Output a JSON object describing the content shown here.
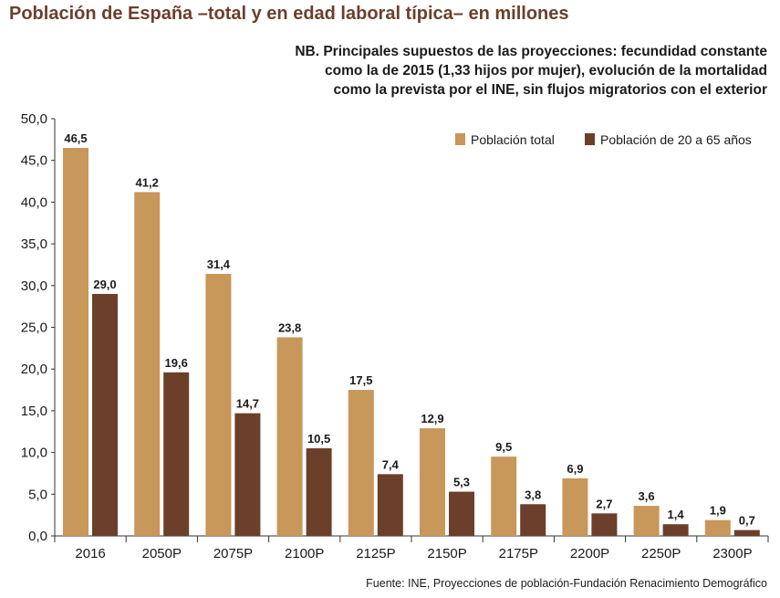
{
  "chart_data": {
    "type": "bar",
    "title": "Población de España –total y en edad laboral típica– en millones",
    "subtitle_lines": [
      "NB. Principales supuestos de las proyecciones: fecundidad constante",
      "como la de 2015 (1,33 hijos por mujer), evolución de la mortalidad",
      "como la prevista por el INE, sin flujos migratorios con el exterior"
    ],
    "source": "Fuente: INE, Proyecciones de población-Fundación Renacimiento Demográfico",
    "categories": [
      "2016",
      "2050P",
      "2075P",
      "2100P",
      "2125P",
      "2150P",
      "2175P",
      "2200P",
      "2250P",
      "2300P"
    ],
    "series": [
      {
        "name": "Población total",
        "color": "#c8975a",
        "values": [
          46.5,
          41.2,
          31.4,
          23.8,
          17.5,
          12.9,
          9.5,
          6.9,
          3.6,
          1.9
        ],
        "labels": [
          "46,5",
          "41,2",
          "31,4",
          "23,8",
          "17,5",
          "12,9",
          "9,5",
          "6,9",
          "3,6",
          "1,9"
        ]
      },
      {
        "name": "Población de 20 a 65 años",
        "color": "#6b3f2a",
        "values": [
          29.0,
          19.6,
          14.7,
          10.5,
          7.4,
          5.3,
          3.8,
          2.7,
          1.4,
          0.7
        ],
        "labels": [
          "29,0",
          "19,6",
          "14,7",
          "10,5",
          "7,4",
          "5,3",
          "3,8",
          "2,7",
          "1,4",
          "0,7"
        ]
      }
    ],
    "ylim": [
      0,
      50
    ],
    "yticks": [
      0,
      5,
      10,
      15,
      20,
      25,
      30,
      35,
      40,
      45,
      50
    ],
    "ytick_labels": [
      "0,0",
      "5,0",
      "10,0",
      "15,0",
      "20,0",
      "25,0",
      "30,0",
      "35,0",
      "40,0",
      "45,0",
      "50,0"
    ],
    "xlabel": "",
    "ylabel": "",
    "legend_position": "top-right",
    "grid": false
  }
}
